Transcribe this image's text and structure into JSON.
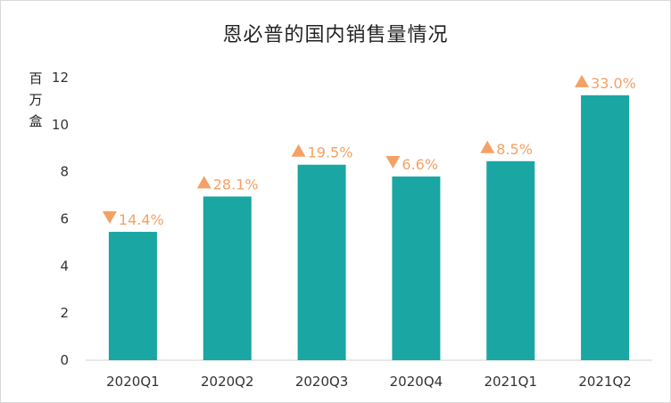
{
  "chart_data": {
    "type": "bar",
    "title": "恩必普的国内销售量情况",
    "ylabel": "百万盒",
    "ylim": [
      0,
      12
    ],
    "yticks": [
      "0",
      "2",
      "4",
      "6",
      "8",
      "10",
      "12"
    ],
    "grid": false,
    "categories": [
      "2020Q1",
      "2020Q2",
      "2020Q3",
      "2020Q4",
      "2021Q1",
      "2021Q2"
    ],
    "values": [
      5.45,
      6.95,
      8.3,
      7.8,
      8.45,
      11.25
    ],
    "data_labels": [
      "14.4%",
      "28.1%",
      "19.5%",
      "6.6%",
      "8.5%",
      "33.0%"
    ],
    "change_direction": [
      "down",
      "up",
      "up",
      "down",
      "up",
      "up"
    ],
    "bar_color": "#1aa6a3",
    "label_color": "#f4a166"
  }
}
